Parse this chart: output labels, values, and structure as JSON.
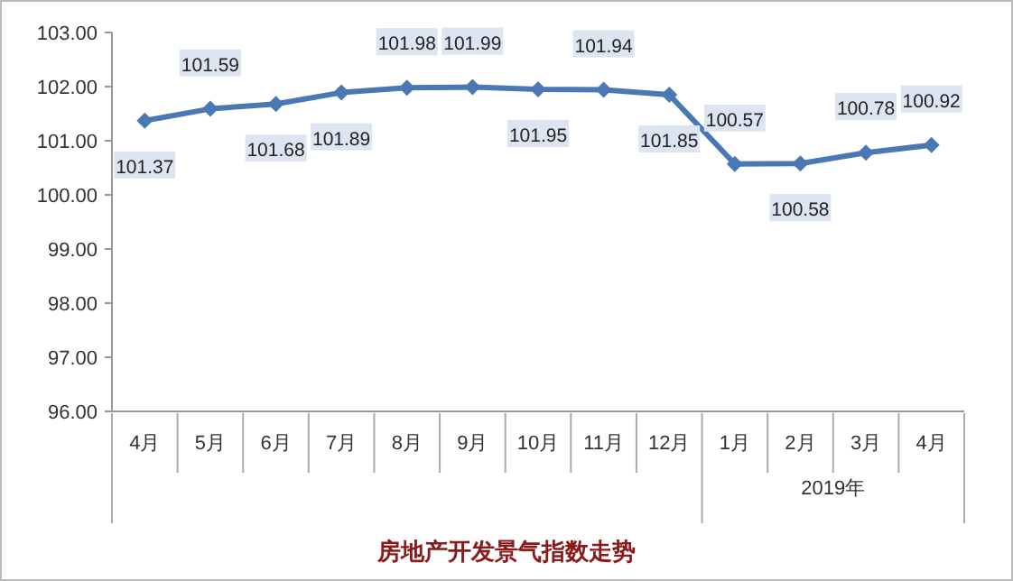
{
  "chart_data": {
    "type": "line",
    "title": "房地产开发景气指数走势",
    "categories": [
      "4月",
      "5月",
      "6月",
      "7月",
      "8月",
      "9月",
      "10月",
      "11月",
      "12月",
      "1月",
      "2月",
      "3月",
      "4月"
    ],
    "series": [
      {
        "color": "#4a78b5",
        "values": [
          101.37,
          101.59,
          101.68,
          101.89,
          101.98,
          101.99,
          101.95,
          101.94,
          101.85,
          100.57,
          100.58,
          100.78,
          100.92
        ]
      }
    ],
    "ylim": [
      96,
      103
    ],
    "yticks": [
      {
        "value": 96,
        "label": "96.00"
      },
      {
        "value": 97,
        "label": "97.00"
      },
      {
        "value": 98,
        "label": "98.00"
      },
      {
        "value": 99,
        "label": "99.00"
      },
      {
        "value": 100,
        "label": "100.00"
      },
      {
        "value": 101,
        "label": "101.00"
      },
      {
        "value": 102,
        "label": "102.00"
      },
      {
        "value": 103,
        "label": "103.00"
      }
    ],
    "annotations": [
      "2019年"
    ],
    "data_labels": true,
    "marker": "diamond",
    "line_style": "solid",
    "grid": false
  }
}
